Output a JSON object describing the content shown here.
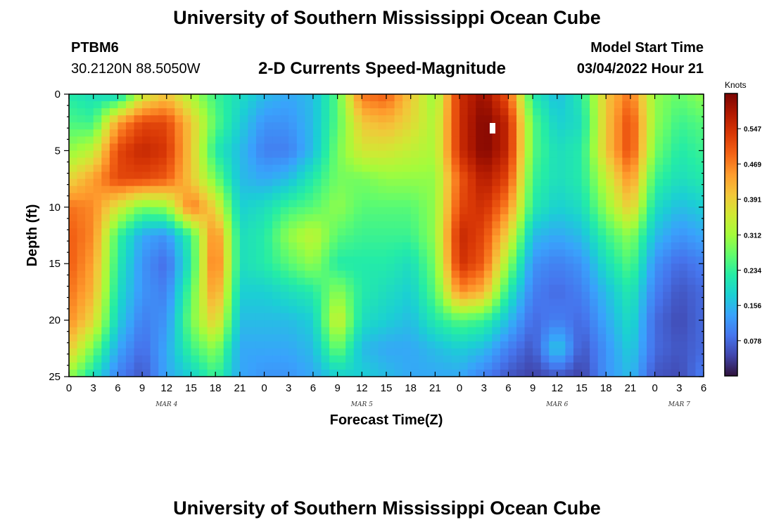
{
  "page": {
    "title_top": "University of Southern Mississippi Ocean Cube",
    "title_bottom": "University of Southern Mississippi Ocean Cube",
    "station_id": "PTBM6",
    "coordinates": "30.2120N  88.5050W",
    "subtitle": "2-D Currents Speed-Magnitude",
    "model_start_label": "Model Start Time",
    "model_start_value": "03/04/2022 Hour 21"
  },
  "colors": {
    "colormap": [
      "#30123b",
      "#4145ab",
      "#4675ed",
      "#39a2fc",
      "#1bcfd4",
      "#24eca6",
      "#61fc6c",
      "#a4fc3b",
      "#d1e834",
      "#f3c63a",
      "#fe9b2d",
      "#f36315",
      "#d93806",
      "#b11901",
      "#7a0402"
    ]
  },
  "chart_data": {
    "type": "heatmap",
    "title": "2-D Currents Speed-Magnitude",
    "xlabel": "Forecast Time(Z)",
    "ylabel": "Depth (ft)",
    "x_unit": "hours after 03/04 00Z",
    "x_range": [
      0,
      78
    ],
    "y_range": [
      0,
      25
    ],
    "y_inverted": true,
    "x_ticks": [
      0,
      3,
      6,
      9,
      12,
      15,
      18,
      21,
      24,
      27,
      30,
      33,
      36,
      39,
      42,
      45,
      48,
      51,
      54,
      57,
      60,
      63,
      66,
      69,
      72,
      75,
      78
    ],
    "x_tick_labels": [
      "0",
      "3",
      "6",
      "9",
      "12",
      "15",
      "18",
      "21",
      "0",
      "3",
      "6",
      "9",
      "12",
      "15",
      "18",
      "21",
      "0",
      "3",
      "6",
      "9",
      "12",
      "15",
      "18",
      "21",
      "0",
      "3",
      "6"
    ],
    "y_ticks": [
      0,
      5,
      10,
      15,
      20,
      25
    ],
    "y_tick_labels": [
      "0",
      "5",
      "10",
      "15",
      "20",
      "25"
    ],
    "day_labels": [
      {
        "text": "MAR 4",
        "at": 12
      },
      {
        "text": "MAR 5",
        "at": 36
      },
      {
        "text": "MAR 6",
        "at": 60
      },
      {
        "text": "MAR 7",
        "at": 75
      }
    ],
    "colorbar": {
      "unit": "Knots",
      "min": 0.0,
      "max": 0.625,
      "ticks": [
        0.078,
        0.156,
        0.234,
        0.312,
        0.391,
        0.469,
        0.547
      ],
      "tick_labels": [
        "0.078",
        "0.156",
        "0.234",
        "0.312",
        "0.391",
        "0.469",
        "0.547"
      ]
    },
    "grid": {
      "description": "estimated speed (knots) at depth rows 0,2.5,...,25 ft by forecast hour 0..78 step 3",
      "depths": [
        0,
        2.5,
        5,
        7.5,
        10,
        12.5,
        15,
        17.5,
        20,
        22.5,
        25
      ],
      "hours": [
        0,
        3,
        6,
        9,
        12,
        15,
        18,
        21,
        24,
        27,
        30,
        33,
        36,
        39,
        42,
        45,
        48,
        51,
        54,
        57,
        60,
        63,
        66,
        69,
        72,
        75,
        78
      ],
      "values": [
        [
          0.22,
          0.2,
          0.18,
          0.34,
          0.4,
          0.32,
          0.24,
          0.2,
          0.16,
          0.14,
          0.16,
          0.26,
          0.48,
          0.5,
          0.4,
          0.3,
          0.55,
          0.6,
          0.5,
          0.22,
          0.16,
          0.22,
          0.4,
          0.48,
          0.3,
          0.27,
          0.3
        ],
        [
          0.25,
          0.24,
          0.44,
          0.52,
          0.52,
          0.4,
          0.26,
          0.18,
          0.12,
          0.12,
          0.16,
          0.26,
          0.4,
          0.42,
          0.38,
          0.32,
          0.55,
          0.62,
          0.56,
          0.26,
          0.18,
          0.2,
          0.4,
          0.52,
          0.3,
          0.24,
          0.26
        ],
        [
          0.3,
          0.34,
          0.52,
          0.56,
          0.54,
          0.4,
          0.22,
          0.16,
          0.1,
          0.1,
          0.16,
          0.28,
          0.36,
          0.36,
          0.34,
          0.32,
          0.55,
          0.62,
          0.56,
          0.26,
          0.2,
          0.22,
          0.4,
          0.52,
          0.28,
          0.22,
          0.24
        ],
        [
          0.38,
          0.44,
          0.52,
          0.52,
          0.5,
          0.4,
          0.28,
          0.16,
          0.14,
          0.16,
          0.22,
          0.28,
          0.28,
          0.3,
          0.3,
          0.3,
          0.5,
          0.58,
          0.52,
          0.24,
          0.2,
          0.22,
          0.34,
          0.46,
          0.24,
          0.2,
          0.22
        ],
        [
          0.48,
          0.46,
          0.36,
          0.28,
          0.3,
          0.48,
          0.38,
          0.18,
          0.2,
          0.24,
          0.26,
          0.3,
          0.26,
          0.26,
          0.26,
          0.3,
          0.52,
          0.55,
          0.46,
          0.22,
          0.18,
          0.2,
          0.3,
          0.4,
          0.2,
          0.16,
          0.18
        ],
        [
          0.5,
          0.46,
          0.24,
          0.14,
          0.12,
          0.24,
          0.48,
          0.2,
          0.22,
          0.3,
          0.34,
          0.26,
          0.24,
          0.24,
          0.24,
          0.3,
          0.56,
          0.52,
          0.38,
          0.16,
          0.14,
          0.16,
          0.24,
          0.3,
          0.16,
          0.12,
          0.14
        ],
        [
          0.5,
          0.44,
          0.22,
          0.12,
          0.08,
          0.22,
          0.5,
          0.2,
          0.22,
          0.26,
          0.3,
          0.22,
          0.22,
          0.22,
          0.2,
          0.28,
          0.55,
          0.5,
          0.3,
          0.12,
          0.1,
          0.12,
          0.2,
          0.26,
          0.12,
          0.08,
          0.1
        ],
        [
          0.48,
          0.42,
          0.2,
          0.12,
          0.1,
          0.26,
          0.46,
          0.18,
          0.18,
          0.2,
          0.22,
          0.3,
          0.22,
          0.2,
          0.18,
          0.26,
          0.46,
          0.42,
          0.22,
          0.1,
          0.08,
          0.1,
          0.16,
          0.22,
          0.1,
          0.06,
          0.08
        ],
        [
          0.46,
          0.38,
          0.18,
          0.1,
          0.12,
          0.28,
          0.4,
          0.16,
          0.16,
          0.16,
          0.18,
          0.36,
          0.2,
          0.18,
          0.16,
          0.22,
          0.26,
          0.24,
          0.16,
          0.08,
          0.1,
          0.08,
          0.14,
          0.2,
          0.08,
          0.05,
          0.08
        ],
        [
          0.4,
          0.28,
          0.14,
          0.08,
          0.14,
          0.24,
          0.3,
          0.14,
          0.14,
          0.14,
          0.16,
          0.28,
          0.16,
          0.14,
          0.14,
          0.16,
          0.18,
          0.16,
          0.1,
          0.06,
          0.18,
          0.06,
          0.12,
          0.18,
          0.08,
          0.06,
          0.08
        ],
        [
          0.3,
          0.2,
          0.1,
          0.06,
          0.14,
          0.18,
          0.24,
          0.14,
          0.12,
          0.12,
          0.14,
          0.18,
          0.18,
          0.16,
          0.14,
          0.14,
          0.14,
          0.1,
          0.06,
          0.04,
          0.06,
          0.04,
          0.12,
          0.16,
          0.06,
          0.05,
          0.1
        ]
      ]
    }
  }
}
